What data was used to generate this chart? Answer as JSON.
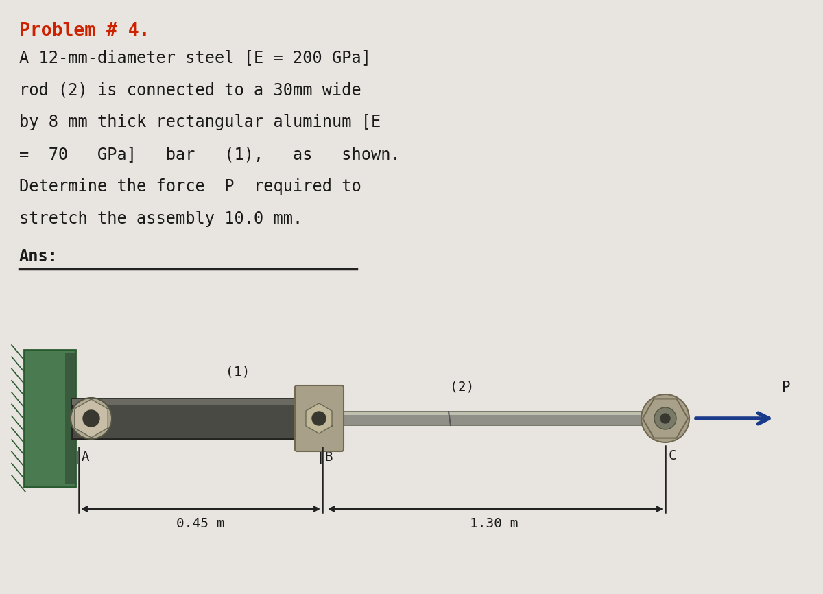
{
  "bg_color": "#e8e4e0",
  "title": "Problem # 4.",
  "title_color": "#cc2200",
  "text_lines": [
    "A 12-mm-diameter steel [E = 200 GPa]",
    "rod (2) is connected to a 30mm wide",
    "by 8 mm thick rectangular aluminum [E",
    "=  70   GPa]   bar   (1),   as   shown.",
    "Determine the force  P  required to",
    "stretch the assembly 10.0 mm."
  ],
  "ans_label": "Ans:",
  "wall_color_main": "#4a7a50",
  "wall_color_dark": "#2a5a30",
  "bar1_color_main": "#4a4a44",
  "bar1_color_top": "#6a6a62",
  "bar1_color_edge": "#222220",
  "connector_color": "#a8a088",
  "connector_dark": "#706850",
  "rod2_color": "#909088",
  "rod2_light": "#c0c0b0",
  "bolt_outer": "#b0a890",
  "bolt_mid": "#d8d0b8",
  "bolt_hole": "#383830",
  "arrow_color": "#1a3a8a",
  "dim_color": "#222222",
  "text_color": "#1a1a1a",
  "label_A": "A",
  "label_B": "B",
  "label_C": "C",
  "label_P": "P",
  "label_1": "(1)",
  "label_2": "(2)",
  "dim_AB": "0.45 m",
  "dim_BC": "1.30 m",
  "circle_color": "#cc2222"
}
